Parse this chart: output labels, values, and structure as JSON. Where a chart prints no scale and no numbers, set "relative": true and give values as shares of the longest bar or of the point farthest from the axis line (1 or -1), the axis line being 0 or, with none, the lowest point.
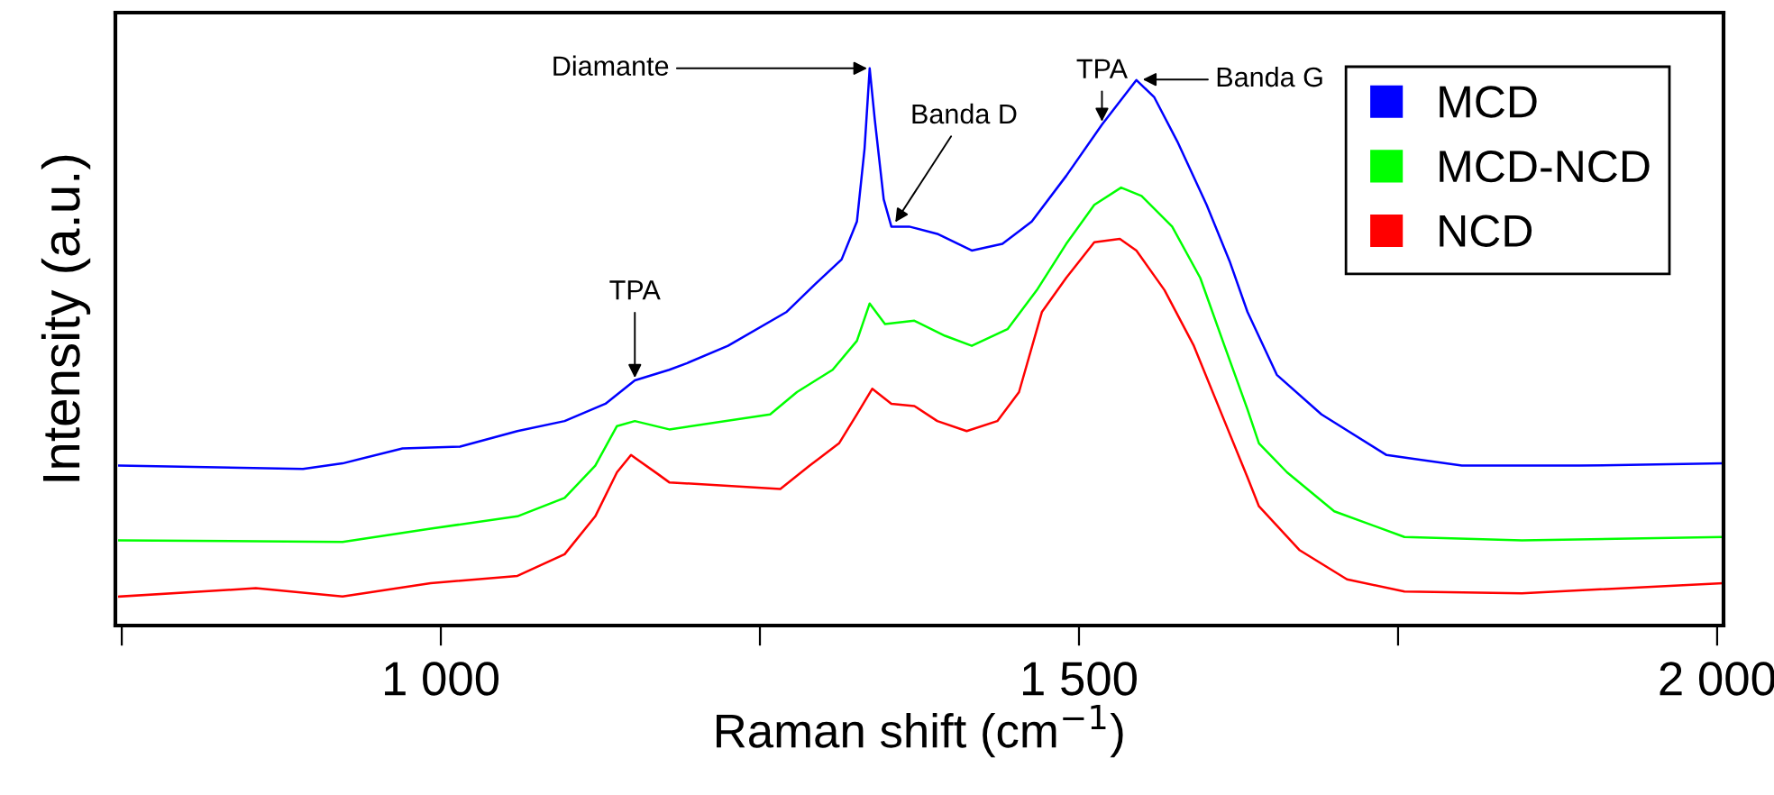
{
  "chart_data": {
    "type": "line",
    "relative": true,
    "xlabel": "Raman shift (cm$^{−1}$)",
    "ylabel": "Intensity (a.u.)",
    "xlim": [
      745,
      2005
    ],
    "xticks": [
      {
        "value": 750,
        "label": null
      },
      {
        "value": 1000,
        "label": "1 000"
      },
      {
        "value": 1250,
        "label": null
      },
      {
        "value": 1500,
        "label": "1 500"
      },
      {
        "value": 1750,
        "label": null
      },
      {
        "value": 2000,
        "label": "2 000"
      }
    ],
    "grid": false,
    "legend": "top right",
    "marker": "none",
    "line_style": "solid",
    "series": [
      {
        "name": "MCD",
        "color": "#0000ff",
        "x": [
          748,
          892,
          923,
          970,
          1015,
          1060,
          1097,
          1129,
          1152,
          1179,
          1193,
          1225,
          1271,
          1293,
          1314,
          1326,
          1332,
          1336,
          1340,
          1347,
          1353,
          1367,
          1389,
          1416,
          1440,
          1463,
          1490,
          1518,
          1545,
          1559,
          1577,
          1600,
          1618,
          1632,
          1655,
          1690,
          1741,
          1800,
          1892,
          2004
        ],
        "values": [
          0.287,
          0.281,
          0.291,
          0.318,
          0.321,
          0.349,
          0.367,
          0.398,
          0.44,
          0.459,
          0.471,
          0.502,
          0.563,
          0.612,
          0.657,
          0.725,
          0.856,
          1.0,
          0.908,
          0.765,
          0.716,
          0.716,
          0.703,
          0.673,
          0.685,
          0.725,
          0.807,
          0.899,
          0.979,
          0.948,
          0.869,
          0.755,
          0.654,
          0.563,
          0.45,
          0.379,
          0.306,
          0.287,
          0.287,
          0.291
        ]
      },
      {
        "name": "MCD-NCD",
        "color": "#00ff00",
        "x": [
          748,
          923,
          992,
          1060,
          1097,
          1121,
          1138,
          1152,
          1179,
          1258,
          1279,
          1307,
          1326,
          1336,
          1348,
          1371,
          1395,
          1416,
          1444,
          1467,
          1490,
          1512,
          1533,
          1549,
          1573,
          1595,
          1614,
          1632,
          1641,
          1663,
          1700,
          1755,
          1847,
          2004
        ],
        "values": [
          0.153,
          0.15,
          0.174,
          0.196,
          0.229,
          0.287,
          0.358,
          0.367,
          0.352,
          0.379,
          0.419,
          0.459,
          0.511,
          0.578,
          0.541,
          0.547,
          0.52,
          0.502,
          0.532,
          0.602,
          0.685,
          0.755,
          0.786,
          0.771,
          0.716,
          0.624,
          0.502,
          0.388,
          0.327,
          0.275,
          0.205,
          0.159,
          0.153,
          0.159
        ]
      },
      {
        "name": "NCD",
        "color": "#ff0000",
        "x": [
          748,
          855,
          923,
          992,
          1060,
          1097,
          1121,
          1138,
          1149,
          1170,
          1179,
          1266,
          1289,
          1312,
          1326,
          1338,
          1353,
          1371,
          1389,
          1412,
          1436,
          1453,
          1471,
          1490,
          1512,
          1532,
          1545,
          1567,
          1590,
          1614,
          1632,
          1641,
          1673,
          1710,
          1755,
          1847,
          2004
        ],
        "values": [
          0.052,
          0.067,
          0.052,
          0.076,
          0.089,
          0.128,
          0.196,
          0.275,
          0.306,
          0.272,
          0.257,
          0.245,
          0.287,
          0.327,
          0.379,
          0.425,
          0.398,
          0.394,
          0.367,
          0.349,
          0.367,
          0.419,
          0.563,
          0.624,
          0.688,
          0.694,
          0.673,
          0.602,
          0.502,
          0.367,
          0.266,
          0.214,
          0.135,
          0.083,
          0.061,
          0.058,
          0.076
        ]
      }
    ],
    "annotations": [
      {
        "text": "TPA",
        "x": 1152,
        "y": 0.44
      },
      {
        "text": "Diamante",
        "x": 1336,
        "y": 1.0
      },
      {
        "text": "Banda D",
        "x": 1355,
        "y": 0.72
      },
      {
        "text": "TPA",
        "x": 1518,
        "y": 0.9
      },
      {
        "text": "Banda G",
        "x": 1548,
        "y": 0.98
      }
    ]
  }
}
